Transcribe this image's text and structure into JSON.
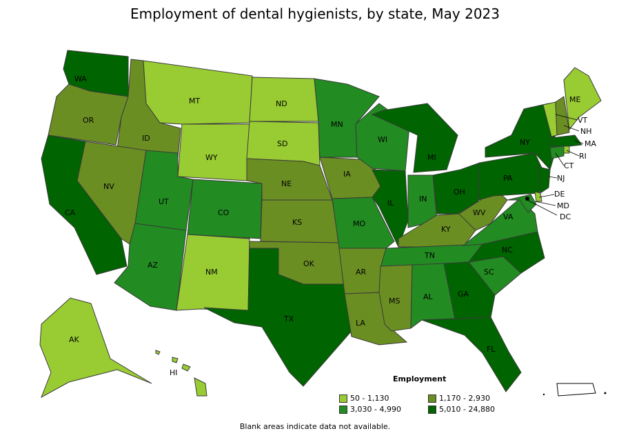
{
  "title": "Employment of dental hygienists, by state, May 2023",
  "footnote": "Blank areas indicate data not available.",
  "legend": {
    "title": "Employment",
    "items": [
      {
        "label": "50 - 1,130",
        "color": "#99cc33"
      },
      {
        "label": "1,170 - 2,930",
        "color": "#6b8e23"
      },
      {
        "label": "3,030 - 4,990",
        "color": "#228b22"
      },
      {
        "label": "5,010 - 24,880",
        "color": "#006400"
      }
    ]
  },
  "states": [
    {
      "abbr": "WA",
      "class": 3
    },
    {
      "abbr": "OR",
      "class": 1
    },
    {
      "abbr": "CA",
      "class": 3
    },
    {
      "abbr": "ID",
      "class": 1
    },
    {
      "abbr": "NV",
      "class": 1
    },
    {
      "abbr": "MT",
      "class": 0
    },
    {
      "abbr": "WY",
      "class": 0
    },
    {
      "abbr": "UT",
      "class": 2
    },
    {
      "abbr": "AZ",
      "class": 2
    },
    {
      "abbr": "CO",
      "class": 2
    },
    {
      "abbr": "NM",
      "class": 0
    },
    {
      "abbr": "ND",
      "class": 0
    },
    {
      "abbr": "SD",
      "class": 0
    },
    {
      "abbr": "NE",
      "class": 1
    },
    {
      "abbr": "KS",
      "class": 1
    },
    {
      "abbr": "OK",
      "class": 1
    },
    {
      "abbr": "TX",
      "class": 3
    },
    {
      "abbr": "MN",
      "class": 2
    },
    {
      "abbr": "IA",
      "class": 1
    },
    {
      "abbr": "MO",
      "class": 2
    },
    {
      "abbr": "AR",
      "class": 1
    },
    {
      "abbr": "LA",
      "class": 1
    },
    {
      "abbr": "WI",
      "class": 2
    },
    {
      "abbr": "IL",
      "class": 3
    },
    {
      "abbr": "MI",
      "class": 3
    },
    {
      "abbr": "IN",
      "class": 2
    },
    {
      "abbr": "OH",
      "class": 3
    },
    {
      "abbr": "KY",
      "class": 1
    },
    {
      "abbr": "TN",
      "class": 2
    },
    {
      "abbr": "MS",
      "class": 1
    },
    {
      "abbr": "AL",
      "class": 2
    },
    {
      "abbr": "GA",
      "class": 3
    },
    {
      "abbr": "FL",
      "class": 3
    },
    {
      "abbr": "SC",
      "class": 2
    },
    {
      "abbr": "NC",
      "class": 3
    },
    {
      "abbr": "VA",
      "class": 2
    },
    {
      "abbr": "WV",
      "class": 1
    },
    {
      "abbr": "PA",
      "class": 3
    },
    {
      "abbr": "NY",
      "class": 3
    },
    {
      "abbr": "ME",
      "class": 0
    },
    {
      "abbr": "VT",
      "class": 0
    },
    {
      "abbr": "NH",
      "class": 1
    },
    {
      "abbr": "MA",
      "class": 3
    },
    {
      "abbr": "RI",
      "class": 0
    },
    {
      "abbr": "CT",
      "class": 2
    },
    {
      "abbr": "NJ",
      "class": 3
    },
    {
      "abbr": "DE",
      "class": 0
    },
    {
      "abbr": "MD",
      "class": 2
    },
    {
      "abbr": "DC",
      "class": 3
    },
    {
      "abbr": "AK",
      "class": 0
    },
    {
      "abbr": "HI",
      "class": 0
    }
  ]
}
